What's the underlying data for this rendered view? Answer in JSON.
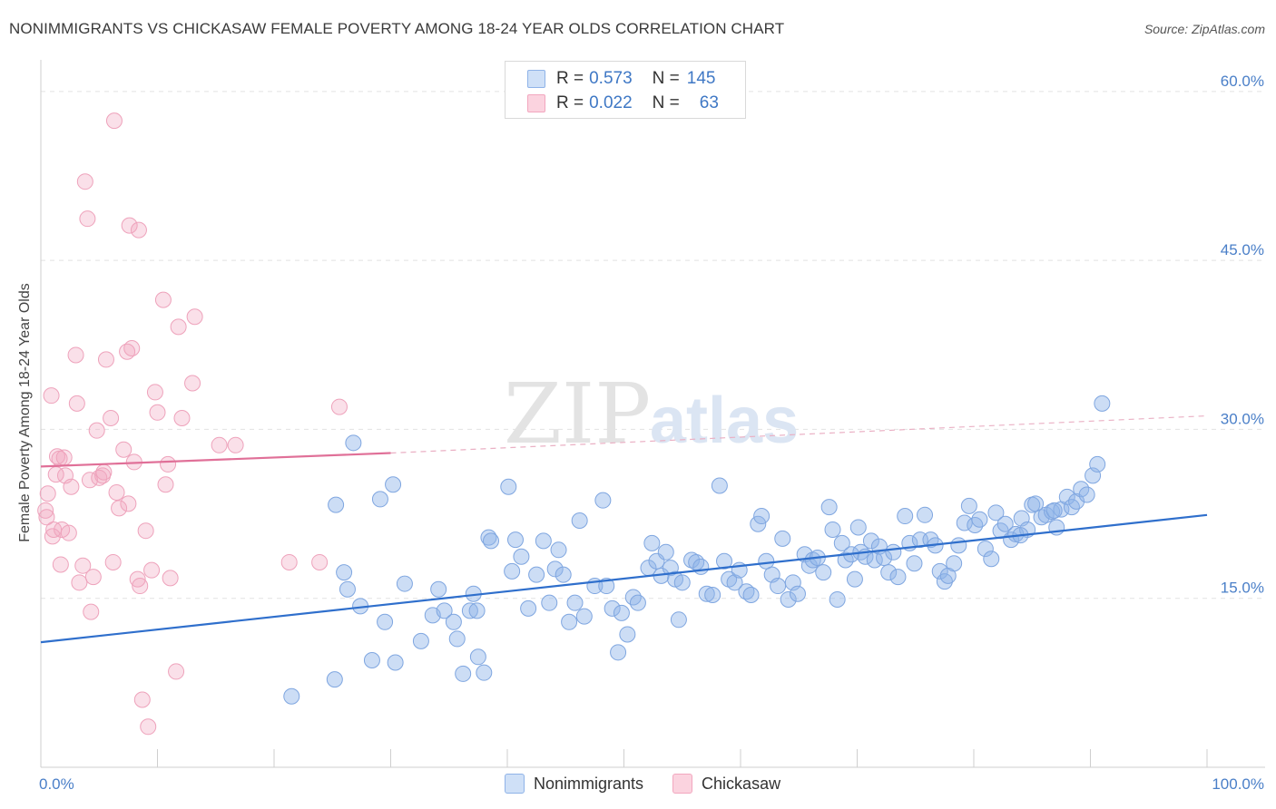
{
  "title": "NONIMMIGRANTS VS CHICKASAW FEMALE POVERTY AMONG 18-24 YEAR OLDS CORRELATION CHART",
  "source": "Source: ZipAtlas.com",
  "watermark": {
    "part1": "ZIP",
    "part2": "atlas"
  },
  "legend_top": {
    "rows": [
      {
        "r_label": "R = ",
        "r_value": "0.573",
        "n_label": "N = ",
        "n_value": "145",
        "color": "#8fb3e8"
      },
      {
        "r_label": "R = ",
        "r_value": "0.022",
        "n_label": "N = ",
        "n_value": "63",
        "color": "#f2a7bf"
      }
    ]
  },
  "legend_bottom": {
    "items": [
      {
        "label": "Nonimmigrants",
        "color": "#8fb3e8"
      },
      {
        "label": "Chickasaw",
        "color": "#f2a7bf"
      }
    ]
  },
  "chart_data": {
    "type": "scatter",
    "title": "NONIMMIGRANTS VS CHICKASAW FEMALE POVERTY AMONG 18-24 YEAR OLDS CORRELATION CHART",
    "xlabel": "",
    "ylabel": "Female Poverty Among 18-24 Year Olds",
    "xlim": [
      0,
      100
    ],
    "ylim": [
      0,
      62
    ],
    "x_ticks": [
      "0.0%",
      "100.0%"
    ],
    "y_ticks": [
      {
        "value": 15,
        "label": "15.0%"
      },
      {
        "value": 30,
        "label": "30.0%"
      },
      {
        "value": 45,
        "label": "45.0%"
      },
      {
        "value": 60,
        "label": "60.0%"
      }
    ],
    "grid": true,
    "legend_position": "top-center",
    "series": [
      {
        "name": "Nonimmigrants",
        "color": "#8fb3e8",
        "line_color": "#2f6fcc",
        "trend": {
          "x0": 0,
          "y0": 11.1,
          "x1": 100,
          "y1": 22.4
        },
        "points": [
          [
            21.5,
            6.3
          ],
          [
            25.2,
            7.8
          ],
          [
            25.3,
            23.3
          ],
          [
            26.0,
            17.3
          ],
          [
            26.3,
            15.8
          ],
          [
            26.8,
            28.8
          ],
          [
            27.4,
            14.3
          ],
          [
            28.4,
            9.5
          ],
          [
            29.1,
            23.8
          ],
          [
            29.5,
            12.9
          ],
          [
            30.2,
            25.1
          ],
          [
            30.4,
            9.3
          ],
          [
            31.2,
            16.3
          ],
          [
            32.6,
            11.2
          ],
          [
            33.6,
            13.5
          ],
          [
            34.1,
            15.8
          ],
          [
            34.6,
            13.9
          ],
          [
            35.4,
            12.9
          ],
          [
            35.7,
            11.4
          ],
          [
            36.2,
            8.3
          ],
          [
            36.8,
            13.9
          ],
          [
            37.1,
            15.4
          ],
          [
            37.5,
            9.8
          ],
          [
            38.0,
            8.4
          ],
          [
            38.4,
            20.4
          ],
          [
            38.6,
            20.1
          ],
          [
            40.1,
            24.9
          ],
          [
            40.4,
            17.4
          ],
          [
            40.7,
            20.2
          ],
          [
            41.2,
            18.7
          ],
          [
            41.8,
            14.1
          ],
          [
            42.5,
            17.1
          ],
          [
            43.1,
            20.1
          ],
          [
            43.6,
            14.6
          ],
          [
            44.1,
            17.6
          ],
          [
            44.4,
            19.3
          ],
          [
            44.8,
            17.1
          ],
          [
            45.3,
            12.9
          ],
          [
            45.8,
            14.6
          ],
          [
            46.2,
            21.9
          ],
          [
            46.6,
            13.4
          ],
          [
            47.5,
            16.1
          ],
          [
            48.2,
            23.7
          ],
          [
            48.5,
            16.1
          ],
          [
            49.0,
            14.1
          ],
          [
            49.5,
            10.2
          ],
          [
            49.8,
            13.7
          ],
          [
            50.3,
            11.8
          ],
          [
            50.8,
            15.1
          ],
          [
            51.2,
            14.6
          ],
          [
            52.1,
            17.7
          ],
          [
            52.4,
            19.9
          ],
          [
            52.8,
            18.3
          ],
          [
            53.2,
            17.0
          ],
          [
            53.6,
            19.1
          ],
          [
            54.0,
            17.7
          ],
          [
            54.4,
            16.7
          ],
          [
            54.7,
            13.1
          ],
          [
            55.0,
            16.4
          ],
          [
            55.8,
            18.4
          ],
          [
            56.2,
            18.2
          ],
          [
            56.6,
            17.8
          ],
          [
            57.1,
            15.4
          ],
          [
            57.6,
            15.3
          ],
          [
            58.2,
            25.0
          ],
          [
            58.6,
            18.3
          ],
          [
            59.0,
            16.7
          ],
          [
            59.5,
            16.4
          ],
          [
            59.9,
            17.5
          ],
          [
            60.5,
            15.6
          ],
          [
            60.9,
            15.3
          ],
          [
            61.5,
            21.6
          ],
          [
            61.8,
            22.3
          ],
          [
            62.2,
            18.3
          ],
          [
            62.7,
            17.1
          ],
          [
            63.2,
            16.1
          ],
          [
            63.6,
            20.3
          ],
          [
            64.1,
            14.9
          ],
          [
            64.5,
            16.4
          ],
          [
            64.9,
            15.4
          ],
          [
            65.5,
            18.9
          ],
          [
            65.9,
            17.9
          ],
          [
            66.2,
            18.4
          ],
          [
            66.6,
            18.6
          ],
          [
            67.1,
            17.3
          ],
          [
            67.6,
            23.1
          ],
          [
            67.9,
            21.1
          ],
          [
            68.3,
            14.9
          ],
          [
            68.7,
            19.9
          ],
          [
            69.0,
            18.4
          ],
          [
            69.5,
            18.9
          ],
          [
            69.8,
            16.7
          ],
          [
            70.3,
            19.1
          ],
          [
            70.7,
            18.7
          ],
          [
            71.2,
            20.1
          ],
          [
            71.5,
            18.4
          ],
          [
            71.9,
            19.6
          ],
          [
            72.3,
            18.6
          ],
          [
            72.7,
            17.3
          ],
          [
            73.1,
            19.1
          ],
          [
            73.5,
            16.9
          ],
          [
            74.1,
            22.3
          ],
          [
            74.5,
            19.9
          ],
          [
            74.9,
            18.1
          ],
          [
            75.4,
            20.2
          ],
          [
            75.8,
            22.4
          ],
          [
            76.3,
            20.2
          ],
          [
            76.7,
            19.7
          ],
          [
            77.1,
            17.4
          ],
          [
            77.5,
            16.5
          ],
          [
            77.8,
            17.0
          ],
          [
            78.3,
            18.1
          ],
          [
            78.7,
            19.7
          ],
          [
            79.2,
            21.7
          ],
          [
            79.6,
            23.2
          ],
          [
            80.1,
            21.5
          ],
          [
            80.5,
            22.0
          ],
          [
            81.0,
            19.4
          ],
          [
            81.5,
            18.5
          ],
          [
            81.9,
            22.6
          ],
          [
            82.3,
            21.0
          ],
          [
            82.7,
            21.6
          ],
          [
            83.2,
            20.2
          ],
          [
            83.6,
            20.7
          ],
          [
            84.1,
            22.1
          ],
          [
            84.6,
            21.1
          ],
          [
            85.0,
            23.3
          ],
          [
            85.3,
            23.4
          ],
          [
            85.8,
            22.2
          ],
          [
            86.2,
            22.4
          ],
          [
            86.7,
            22.7
          ],
          [
            87.1,
            21.3
          ],
          [
            87.5,
            22.9
          ],
          [
            88.0,
            24.0
          ],
          [
            88.4,
            23.1
          ],
          [
            88.8,
            23.6
          ],
          [
            89.2,
            24.7
          ],
          [
            89.7,
            24.2
          ],
          [
            90.2,
            25.9
          ],
          [
            90.6,
            26.9
          ],
          [
            91.0,
            32.3
          ],
          [
            86.9,
            22.8
          ],
          [
            84.0,
            20.6
          ],
          [
            70.1,
            21.3
          ],
          [
            37.4,
            13.9
          ]
        ]
      },
      {
        "name": "Chickasaw",
        "color": "#f2a7bf",
        "line_color": "#e07098",
        "trend": {
          "x0": 0,
          "y0": 26.7,
          "x1": 30,
          "y1": 27.9,
          "dashed_to_x": 100,
          "dashed_to_y": 31.2
        },
        "points": [
          [
            0.4,
            22.8
          ],
          [
            0.5,
            22.2
          ],
          [
            0.6,
            24.3
          ],
          [
            0.9,
            33.0
          ],
          [
            1.0,
            20.5
          ],
          [
            1.1,
            21.1
          ],
          [
            1.4,
            27.6
          ],
          [
            1.6,
            27.4
          ],
          [
            1.7,
            18.0
          ],
          [
            1.8,
            21.1
          ],
          [
            2.1,
            25.9
          ],
          [
            2.4,
            20.8
          ],
          [
            2.6,
            24.9
          ],
          [
            3.0,
            36.6
          ],
          [
            3.1,
            32.3
          ],
          [
            3.3,
            16.4
          ],
          [
            3.6,
            17.9
          ],
          [
            3.8,
            52.0
          ],
          [
            4.0,
            48.7
          ],
          [
            4.2,
            25.5
          ],
          [
            4.3,
            13.8
          ],
          [
            4.5,
            16.9
          ],
          [
            4.8,
            29.9
          ],
          [
            5.0,
            25.7
          ],
          [
            5.3,
            25.9
          ],
          [
            5.4,
            26.2
          ],
          [
            5.6,
            36.2
          ],
          [
            6.0,
            31.0
          ],
          [
            6.2,
            18.2
          ],
          [
            6.3,
            57.4
          ],
          [
            6.5,
            24.4
          ],
          [
            6.7,
            23.0
          ],
          [
            7.1,
            28.2
          ],
          [
            7.4,
            36.9
          ],
          [
            7.5,
            23.4
          ],
          [
            7.6,
            48.1
          ],
          [
            7.8,
            37.2
          ],
          [
            8.0,
            27.1
          ],
          [
            8.3,
            16.7
          ],
          [
            8.4,
            47.7
          ],
          [
            8.5,
            16.1
          ],
          [
            8.7,
            6.0
          ],
          [
            9.0,
            21.0
          ],
          [
            9.2,
            3.6
          ],
          [
            9.5,
            17.5
          ],
          [
            9.8,
            33.3
          ],
          [
            10.0,
            31.5
          ],
          [
            10.5,
            41.5
          ],
          [
            10.7,
            25.1
          ],
          [
            10.9,
            26.9
          ],
          [
            11.1,
            16.8
          ],
          [
            11.6,
            8.5
          ],
          [
            11.8,
            39.1
          ],
          [
            12.1,
            31.0
          ],
          [
            13.0,
            34.1
          ],
          [
            13.2,
            40.0
          ],
          [
            15.3,
            28.6
          ],
          [
            16.7,
            28.6
          ],
          [
            21.3,
            18.2
          ],
          [
            23.9,
            18.2
          ],
          [
            25.6,
            32.0
          ],
          [
            1.3,
            26.0
          ],
          [
            2.0,
            27.5
          ]
        ]
      }
    ]
  }
}
